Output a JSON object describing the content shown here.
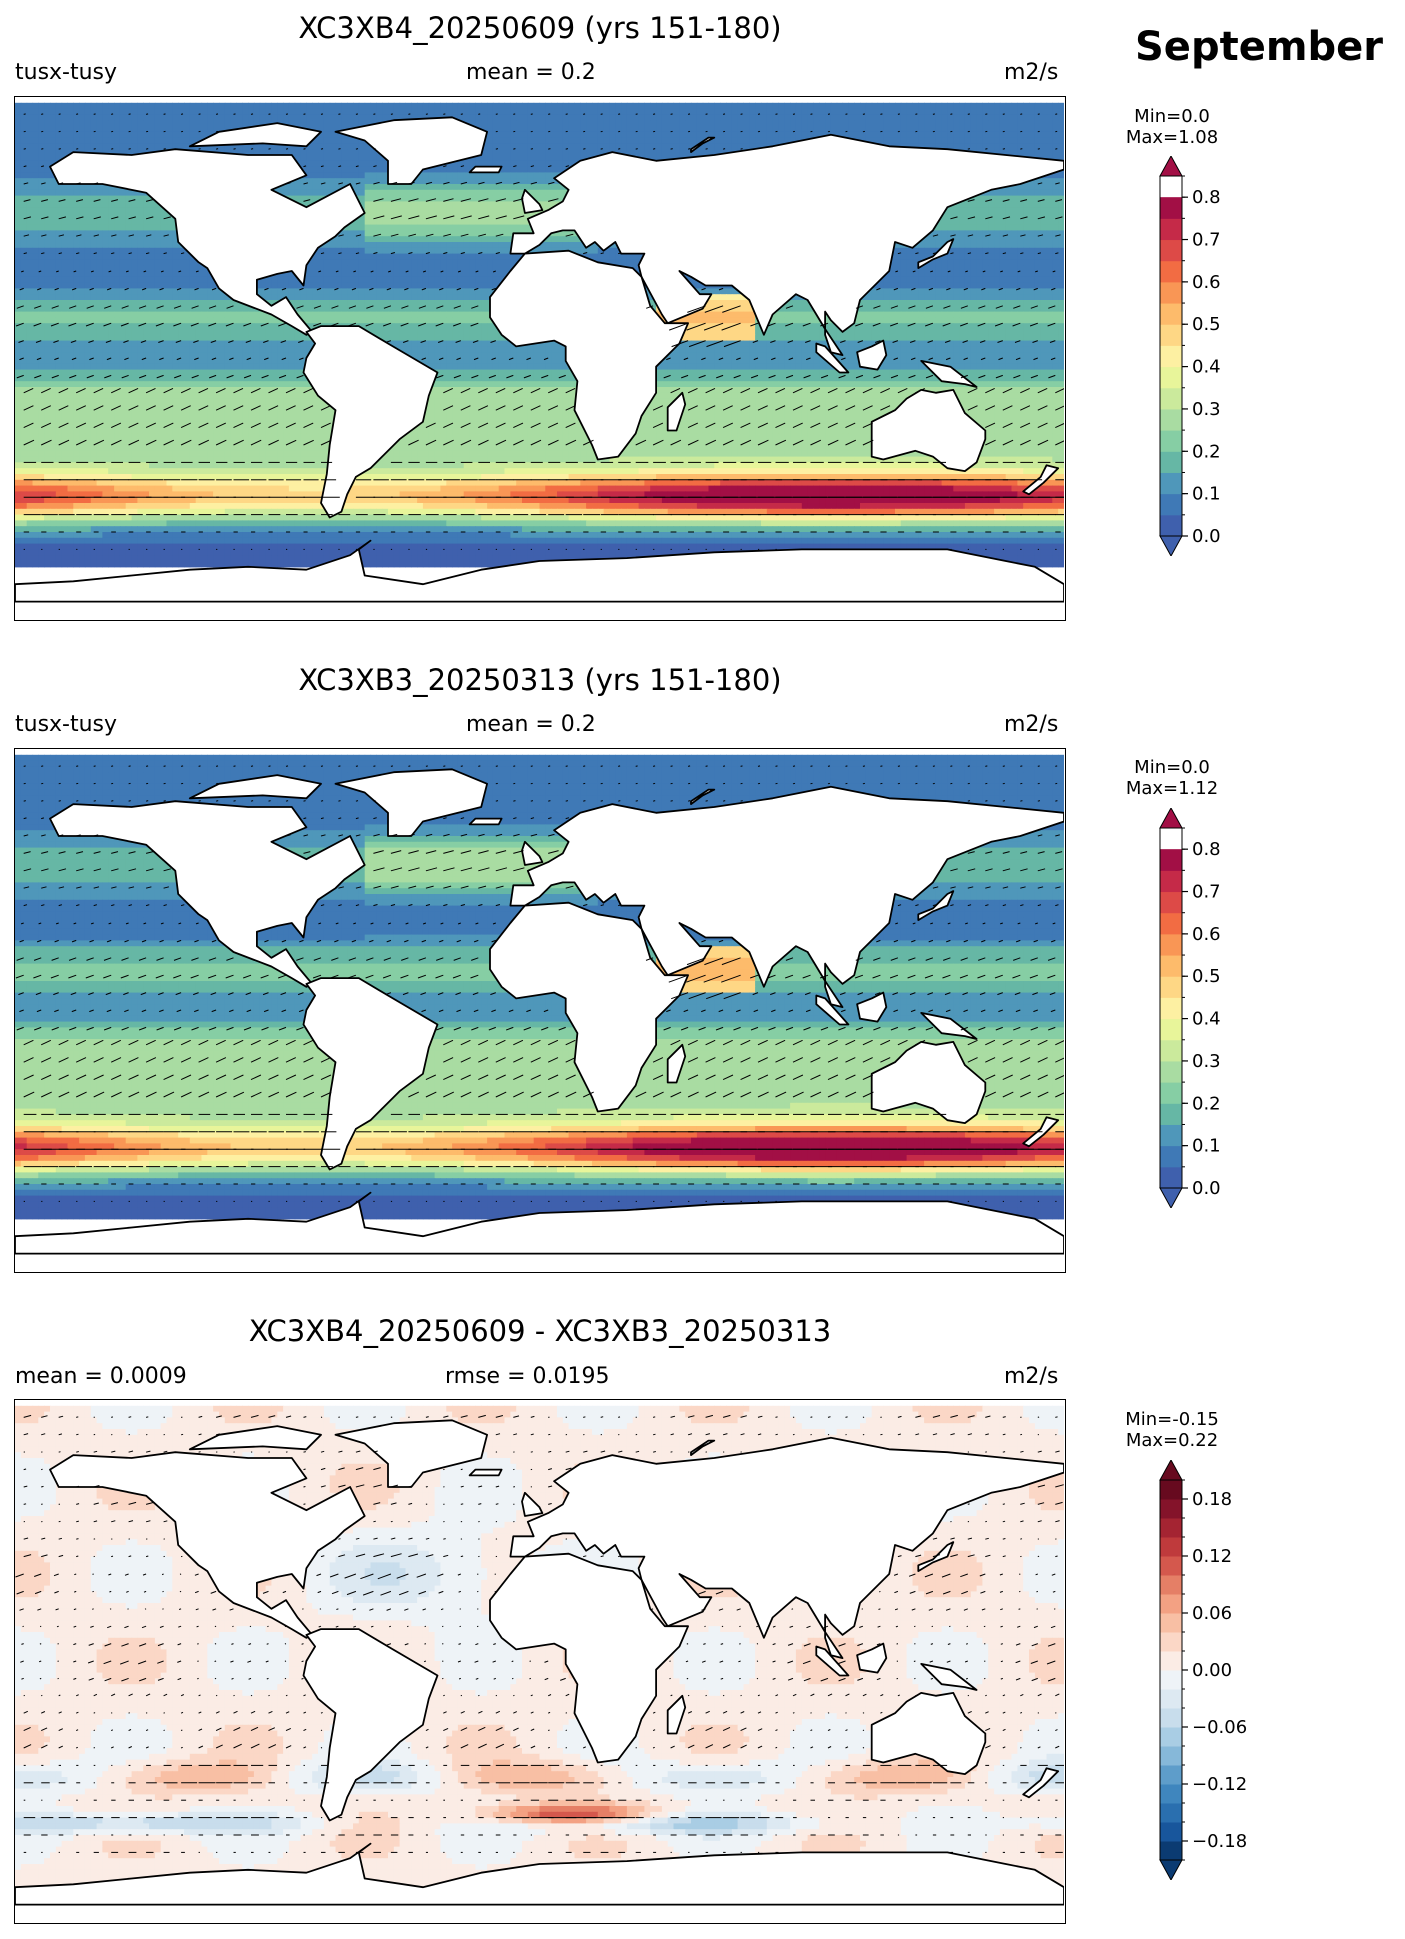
{
  "figure": {
    "month": "September"
  },
  "chart_data": [
    {
      "type": "heatmap",
      "title": "XC3XB4_20250609 (yrs 151-180)",
      "left_label": "tusx-tusy",
      "center_label": "mean = 0.2",
      "right_label": "m2/s",
      "min_text": "Min=0.0",
      "max_text": "Max=1.08",
      "colorbar": {
        "levels": [
          0.0,
          0.05,
          0.1,
          0.15,
          0.2,
          0.25,
          0.3,
          0.35,
          0.4,
          0.45,
          0.5,
          0.55,
          0.6,
          0.65,
          0.7,
          0.75,
          0.8,
          0.85
        ],
        "tick_labels": [
          "0.0",
          "0.1",
          "0.2",
          "0.3",
          "0.4",
          "0.5",
          "0.6",
          "0.7",
          "0.8"
        ],
        "tick_values": [
          0.0,
          0.1,
          0.2,
          0.3,
          0.4,
          0.5,
          0.6,
          0.7,
          0.8
        ],
        "colors": [
          "#3f60ad",
          "#3f79b6",
          "#4f97ba",
          "#66b7a5",
          "#86cea4",
          "#a9dca2",
          "#cbea9c",
          "#e8f59a",
          "#fdf0a2",
          "#fed785",
          "#fdbb6b",
          "#f99655",
          "#f26c43",
          "#dd4a47",
          "#c52a48",
          "#a20f45"
        ],
        "extend": "both",
        "cmap": "Spectral_r"
      }
    },
    {
      "type": "heatmap",
      "title": "XC3XB3_20250313 (yrs 151-180)",
      "left_label": "tusx-tusy",
      "center_label": "mean = 0.2",
      "right_label": "m2/s",
      "min_text": "Min=0.0",
      "max_text": "Max=1.12",
      "colorbar": {
        "levels": [
          0.0,
          0.05,
          0.1,
          0.15,
          0.2,
          0.25,
          0.3,
          0.35,
          0.4,
          0.45,
          0.5,
          0.55,
          0.6,
          0.65,
          0.7,
          0.75,
          0.8,
          0.85
        ],
        "tick_labels": [
          "0.0",
          "0.1",
          "0.2",
          "0.3",
          "0.4",
          "0.5",
          "0.6",
          "0.7",
          "0.8"
        ],
        "tick_values": [
          0.0,
          0.1,
          0.2,
          0.3,
          0.4,
          0.5,
          0.6,
          0.7,
          0.8
        ],
        "colors": [
          "#3f60ad",
          "#3f79b6",
          "#4f97ba",
          "#66b7a5",
          "#86cea4",
          "#a9dca2",
          "#cbea9c",
          "#e8f59a",
          "#fdf0a2",
          "#fed785",
          "#fdbb6b",
          "#f99655",
          "#f26c43",
          "#dd4a47",
          "#c52a48",
          "#a20f45"
        ],
        "extend": "both",
        "cmap": "Spectral_r"
      }
    },
    {
      "type": "heatmap",
      "title": "XC3XB4_20250609 - XC3XB3_20250313",
      "left_label": "mean = 0.0009",
      "center_label": "rmse = 0.0195",
      "right_label": "m2/s",
      "min_text": "Min=-0.15",
      "max_text": "Max=0.22",
      "colorbar": {
        "levels": [
          -0.2,
          -0.18,
          -0.16,
          -0.14,
          -0.12,
          -0.1,
          -0.08,
          -0.06,
          -0.04,
          -0.02,
          0.0,
          0.02,
          0.04,
          0.06,
          0.08,
          0.1,
          0.12,
          0.14,
          0.16,
          0.18,
          0.2
        ],
        "tick_labels": [
          "−0.18",
          "−0.12",
          "−0.06",
          "0.00",
          "0.06",
          "0.12",
          "0.18"
        ],
        "tick_values": [
          -0.18,
          -0.12,
          -0.06,
          0.0,
          0.06,
          0.12,
          0.18
        ],
        "colors": [
          "#0b3b72",
          "#18569c",
          "#2a6faf",
          "#3f86be",
          "#5e9dca",
          "#86b8d9",
          "#a9cde4",
          "#c8ddec",
          "#dde9f2",
          "#eef3f7",
          "#fbece5",
          "#fbd7c6",
          "#f8bfa4",
          "#f3a183",
          "#e57f66",
          "#d4584d",
          "#bf3a3c",
          "#a42432",
          "#84132a",
          "#670a1f"
        ],
        "extend": "both",
        "cmap": "RdBu_r"
      }
    }
  ]
}
